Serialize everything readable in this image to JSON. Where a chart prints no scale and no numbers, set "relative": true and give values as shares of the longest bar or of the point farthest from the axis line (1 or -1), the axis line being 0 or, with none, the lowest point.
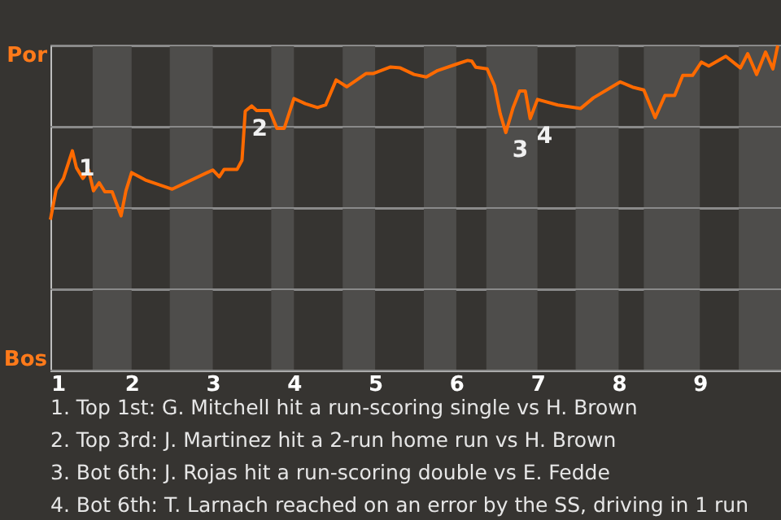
{
  "chart_data": {
    "type": "line",
    "x": [
      1,
      1.07,
      1.16,
      1.27,
      1.32,
      1.4,
      1.47,
      1.53,
      1.6,
      1.67,
      1.76,
      1.87,
      1.93,
      2,
      2.17,
      2.5,
      3,
      3.08,
      3.14,
      3.3,
      3.36,
      3.4,
      3.48,
      3.54,
      3.7,
      3.79,
      3.88,
      4,
      4.14,
      4.29,
      4.39,
      4.52,
      4.65,
      4.89,
      4.98,
      5.19,
      5.31,
      5.48,
      5.63,
      5.77,
      6.03,
      6.14,
      6.19,
      6.24,
      6.38,
      6.47,
      6.54,
      6.61,
      6.7,
      6.78,
      6.85,
      6.91,
      7,
      7.25,
      7.53,
      7.69,
      8.02,
      8.17,
      8.31,
      8.45,
      8.57,
      8.69,
      8.79,
      8.91,
      9.02,
      9.11,
      9.32,
      9.5,
      9.59,
      9.7,
      9.81,
      9.9,
      9.96
    ],
    "series": [
      {
        "color": "#ff6a00",
        "values": [
          0.464,
          0.556,
          0.591,
          0.676,
          0.624,
          0.591,
          0.617,
          0.553,
          0.578,
          0.55,
          0.55,
          0.476,
          0.553,
          0.609,
          0.586,
          0.558,
          0.617,
          0.596,
          0.619,
          0.619,
          0.647,
          0.798,
          0.814,
          0.8,
          0.8,
          0.745,
          0.745,
          0.837,
          0.821,
          0.809,
          0.817,
          0.894,
          0.873,
          0.914,
          0.914,
          0.934,
          0.931,
          0.911,
          0.903,
          0.923,
          0.945,
          0.954,
          0.952,
          0.933,
          0.928,
          0.877,
          0.791,
          0.732,
          0.809,
          0.86,
          0.86,
          0.775,
          0.834,
          0.817,
          0.806,
          0.839,
          0.888,
          0.872,
          0.863,
          0.778,
          0.846,
          0.846,
          0.908,
          0.908,
          0.949,
          0.937,
          0.967,
          0.931,
          0.975,
          0.911,
          0.98,
          0.928,
          1
        ]
      }
    ],
    "relative": true,
    "xlim": [
      1,
      10
    ],
    "xticks": [
      1,
      2,
      3,
      4,
      5,
      6,
      7,
      8,
      9
    ],
    "grid": "y",
    "bands": [
      {
        "axis": "x",
        "from": 1.52,
        "to": 2,
        "color": "#4e4d4b"
      },
      {
        "axis": "x",
        "from": 2.47,
        "to": 3,
        "color": "#4e4d4b"
      },
      {
        "axis": "x",
        "from": 3.72,
        "to": 4,
        "color": "#4e4d4b"
      },
      {
        "axis": "x",
        "from": 4.6,
        "to": 5,
        "color": "#4e4d4b"
      },
      {
        "axis": "x",
        "from": 5.6,
        "to": 6,
        "color": "#4e4d4b"
      },
      {
        "axis": "x",
        "from": 6.37,
        "to": 7,
        "color": "#4e4d4b"
      },
      {
        "axis": "x",
        "from": 7.47,
        "to": 8,
        "color": "#4e4d4b"
      },
      {
        "axis": "x",
        "from": 8.31,
        "to": 9,
        "color": "#4e4d4b"
      },
      {
        "axis": "x",
        "from": 9.48,
        "to": 10,
        "color": "#4e4d4b"
      }
    ],
    "annotations": [
      "Por",
      "Bos",
      {
        "text": "1",
        "x": 1.27,
        "y": 0.676
      },
      {
        "text": "2",
        "x": 3.4,
        "y": 0.798
      },
      {
        "text": "3",
        "x": 6.61,
        "y": 0.732
      },
      {
        "text": "4",
        "x": 6.91,
        "y": 0.775
      },
      "1. Top 1st: G. Mitchell hit a run-scoring single vs H. Brown",
      "2. Top 3rd: J. Martinez hit a 2-run home run vs H. Brown",
      "3. Bot 6th: J. Rojas hit a run-scoring double vs E. Fedde",
      "4. Bot 6th: T. Larnach reached on an error by the SS, driving in 1 run"
    ]
  }
}
